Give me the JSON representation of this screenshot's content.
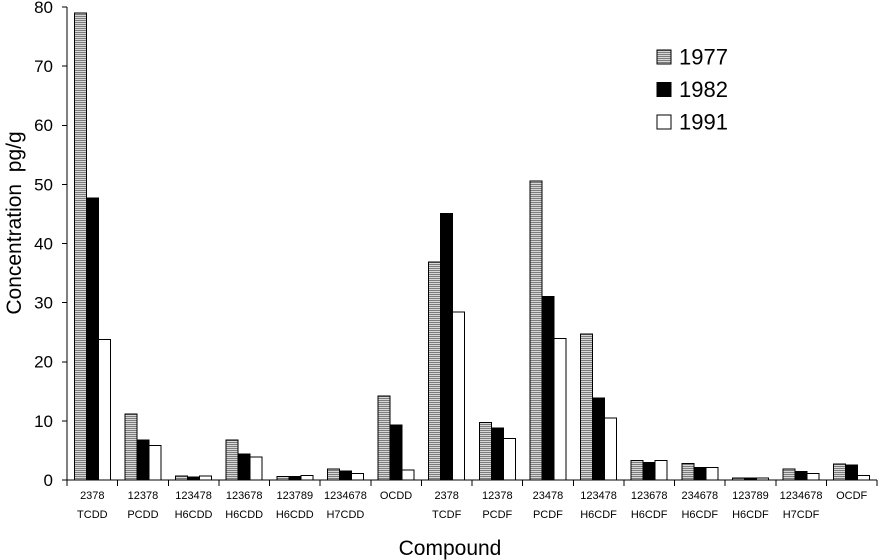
{
  "chart_data": {
    "type": "bar",
    "xlabel": "Compound",
    "ylabel": "Concentration  pg/g",
    "ylim": [
      0,
      80
    ],
    "yticks": [
      0,
      10,
      20,
      30,
      40,
      50,
      60,
      70,
      80
    ],
    "grid": false,
    "legend_position": "top-right",
    "categories": [
      "2378\nTCDD",
      "12378\nPCDD",
      "123478\nH6CDD",
      "123678\nH6CDD",
      "123789\nH6CDD",
      "1234678\nH7CDD",
      "OCDD",
      "2378\nTCDF",
      "12378\nPCDF",
      "23478\nPCDF",
      "123478\nH6CDF",
      "123678\nH6CDF",
      "234678\nH6CDF",
      "123789\nH6CDF",
      "1234678\nH7CDF",
      "OCDF"
    ],
    "series": [
      {
        "name": "1977",
        "values": [
          79.0,
          11.2,
          0.7,
          6.8,
          0.6,
          1.9,
          14.2,
          36.9,
          9.7,
          50.6,
          24.7,
          3.3,
          2.8,
          0.3,
          1.9,
          2.7
        ],
        "color": "#d8d8d8",
        "hatch_color": "#7c7c7c",
        "hatched": true
      },
      {
        "name": "1982",
        "values": [
          47.7,
          6.8,
          0.5,
          4.4,
          0.6,
          1.5,
          9.3,
          45.1,
          8.8,
          31.0,
          13.9,
          3.0,
          2.1,
          0.3,
          1.4,
          2.5
        ],
        "color": "#000000",
        "hatched": false
      },
      {
        "name": "1991",
        "values": [
          23.8,
          5.8,
          0.7,
          3.9,
          0.8,
          1.1,
          1.7,
          28.4,
          7.0,
          23.9,
          10.5,
          3.3,
          2.1,
          0.3,
          1.1,
          0.8
        ],
        "color": "#ffffff",
        "hatched": false
      }
    ],
    "bar_outline_color": "#000000"
  }
}
